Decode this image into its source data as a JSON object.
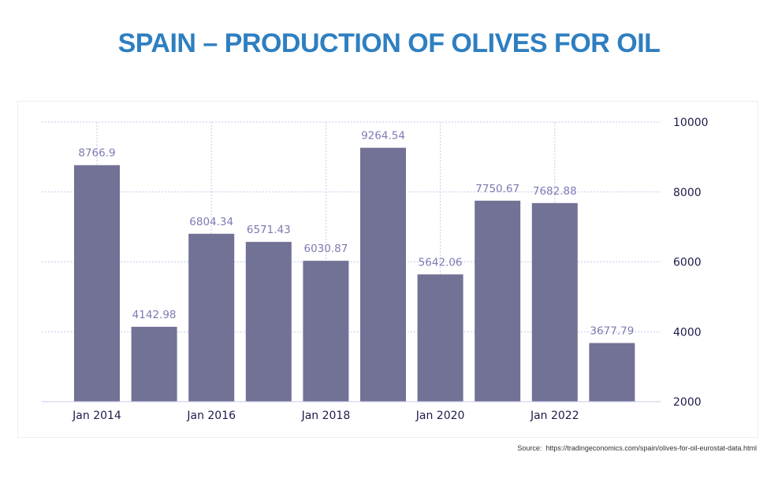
{
  "title": "SPAIN – PRODUCTION OF OLIVES FOR OIL",
  "source": {
    "label": "Source:",
    "url": "https://tradingeconomics.com/spain/olives-for-oil-eurostat-data.html"
  },
  "colors": {
    "title": "#2e7fc1",
    "bar": "#727196",
    "data_label": "#7c7bb3",
    "axis_text": "#1c1c4a",
    "grid": "#c9c9ee"
  },
  "chart_data": {
    "type": "bar",
    "title": "",
    "xlabel": "",
    "ylabel": "",
    "categories": [
      "2014",
      "2015",
      "2016",
      "2017",
      "2018",
      "2019",
      "2020",
      "2021",
      "2022",
      "2023"
    ],
    "values": [
      8766.9,
      4142.98,
      6804.34,
      6571.43,
      6030.87,
      9264.54,
      5642.06,
      7750.67,
      7682.88,
      3677.79
    ],
    "data_labels": [
      "8766.9",
      "4142.98",
      "6804.34",
      "6571.43",
      "6030.87",
      "9264.54",
      "5642.06",
      "7750.67",
      "7682.88",
      "3677.79"
    ],
    "x_tick_labels": [
      {
        "label": "Jan 2014",
        "index": 0
      },
      {
        "label": "Jan 2016",
        "index": 2
      },
      {
        "label": "Jan 2018",
        "index": 4
      },
      {
        "label": "Jan 2020",
        "index": 6
      },
      {
        "label": "Jan 2022",
        "index": 8
      }
    ],
    "y_ticks": [
      2000,
      4000,
      6000,
      8000,
      10000
    ],
    "ylim": [
      2000,
      10000
    ],
    "y_axis_side": "right",
    "grid": true
  }
}
